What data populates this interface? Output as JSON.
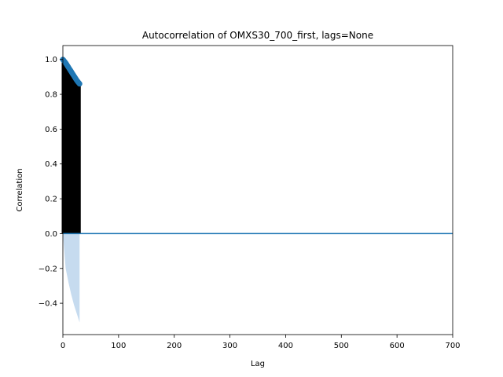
{
  "chart_data": {
    "type": "line",
    "title": "Autocorrelation of OMXS30_700_first, lags=None",
    "xlabel": "Lag",
    "ylabel": "Correlation",
    "xlim": [
      0,
      700
    ],
    "ylim": [
      -0.58,
      1.08
    ],
    "xticks": [
      0,
      100,
      200,
      300,
      400,
      500,
      600,
      700
    ],
    "yticks": [
      -0.4,
      -0.2,
      0.0,
      0.2,
      0.4,
      0.6,
      0.8,
      1.0
    ],
    "ytick_labels": [
      "−0.4",
      "−0.2",
      "0.0",
      "0.2",
      "0.4",
      "0.6",
      "0.8",
      "1.0"
    ],
    "grid": false,
    "lag_range": [
      0,
      30
    ],
    "acf": {
      "lags": [
        0,
        5,
        10,
        15,
        20,
        25,
        30
      ],
      "values": [
        1.0,
        0.98,
        0.955,
        0.93,
        0.905,
        0.88,
        0.86
      ]
    },
    "confidence_band": {
      "lags": [
        0,
        5,
        10,
        15,
        20,
        25,
        30
      ],
      "upper": [
        0.0,
        0.0,
        0.0,
        0.0,
        0.0,
        0.0,
        0.0
      ],
      "lower": [
        0.0,
        -0.2,
        -0.28,
        -0.35,
        -0.41,
        -0.46,
        -0.51
      ]
    },
    "baseline": 0.0,
    "colors": {
      "markers": "#1f77b4",
      "stems": "#000000",
      "band": "#c6dbef",
      "zero_line": "#1f77b4"
    }
  }
}
